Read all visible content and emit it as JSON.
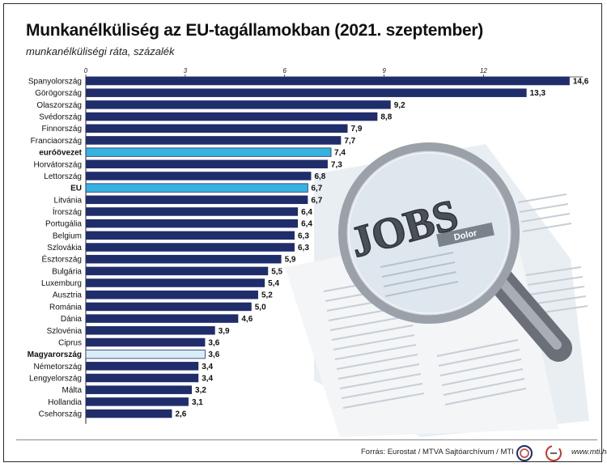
{
  "title": "Munkanélküliség az EU-tagállamokban (2021. szeptember)",
  "subtitle": "munkanélküliségi ráta, százalék",
  "colors": {
    "bar_default": "#1f2d6b",
    "bar_highlight": "#35b2e0",
    "bar_hungary": "#d8edf8",
    "bar_hungary_border": "#1f2d6b",
    "axis": "#2b2b2b"
  },
  "chart_data": {
    "type": "bar",
    "orientation": "horizontal",
    "xlim": [
      0,
      15
    ],
    "xticks": [
      "0",
      "3",
      "6",
      "9",
      "12"
    ],
    "tick_values": [
      0,
      3,
      6,
      9,
      12
    ],
    "categories": [
      "Spanyolország",
      "Görögország",
      "Olaszország",
      "Svédország",
      "Finnország",
      "Franciaország",
      "euróövezet",
      "Horvátország",
      "Lettország",
      "EU",
      "Litvánia",
      "Írország",
      "Portugália",
      "Belgium",
      "Szlovákia",
      "Észtország",
      "Bulgária",
      "Luxemburg",
      "Ausztria",
      "Románia",
      "Dánia",
      "Szlovénia",
      "Ciprus",
      "Magyarország",
      "Németország",
      "Lengyelország",
      "Málta",
      "Hollandia",
      "Csehország"
    ],
    "values": [
      14.6,
      13.3,
      9.2,
      8.8,
      7.9,
      7.7,
      7.4,
      7.3,
      6.8,
      6.7,
      6.7,
      6.4,
      6.4,
      6.3,
      6.3,
      5.9,
      5.5,
      5.4,
      5.2,
      5.0,
      4.6,
      3.9,
      3.6,
      3.6,
      3.4,
      3.4,
      3.2,
      3.1,
      2.6
    ],
    "value_labels": [
      "14,6",
      "13,3",
      "9,2",
      "8,8",
      "7,9",
      "7,7",
      "7,4",
      "7,3",
      "6,8",
      "6,7",
      "6,7",
      "6,4",
      "6,4",
      "6,3",
      "6,3",
      "5,9",
      "5,5",
      "5,4",
      "5,2",
      "5,0",
      "4,6",
      "3,9",
      "3,6",
      "3,6",
      "3,4",
      "3,4",
      "3,2",
      "3,1",
      "2,6"
    ],
    "highlight": {
      "euróövezet": "highlight",
      "EU": "highlight",
      "Magyarország": "hungary"
    },
    "bold_categories": [
      "euróövezet",
      "EU",
      "Magyarország"
    ],
    "grid": false
  },
  "illustration": {
    "headline": "JOBS",
    "tag": "Dolor",
    "icon": "magnifying-glass-over-newspaper"
  },
  "footer": {
    "source": "Forrás: Eurostat / MTVA Sajtóarchívum / MTI",
    "mtva_logo": "MTVA",
    "mti_logo": "MTI",
    "site": "www.mti.hu"
  }
}
